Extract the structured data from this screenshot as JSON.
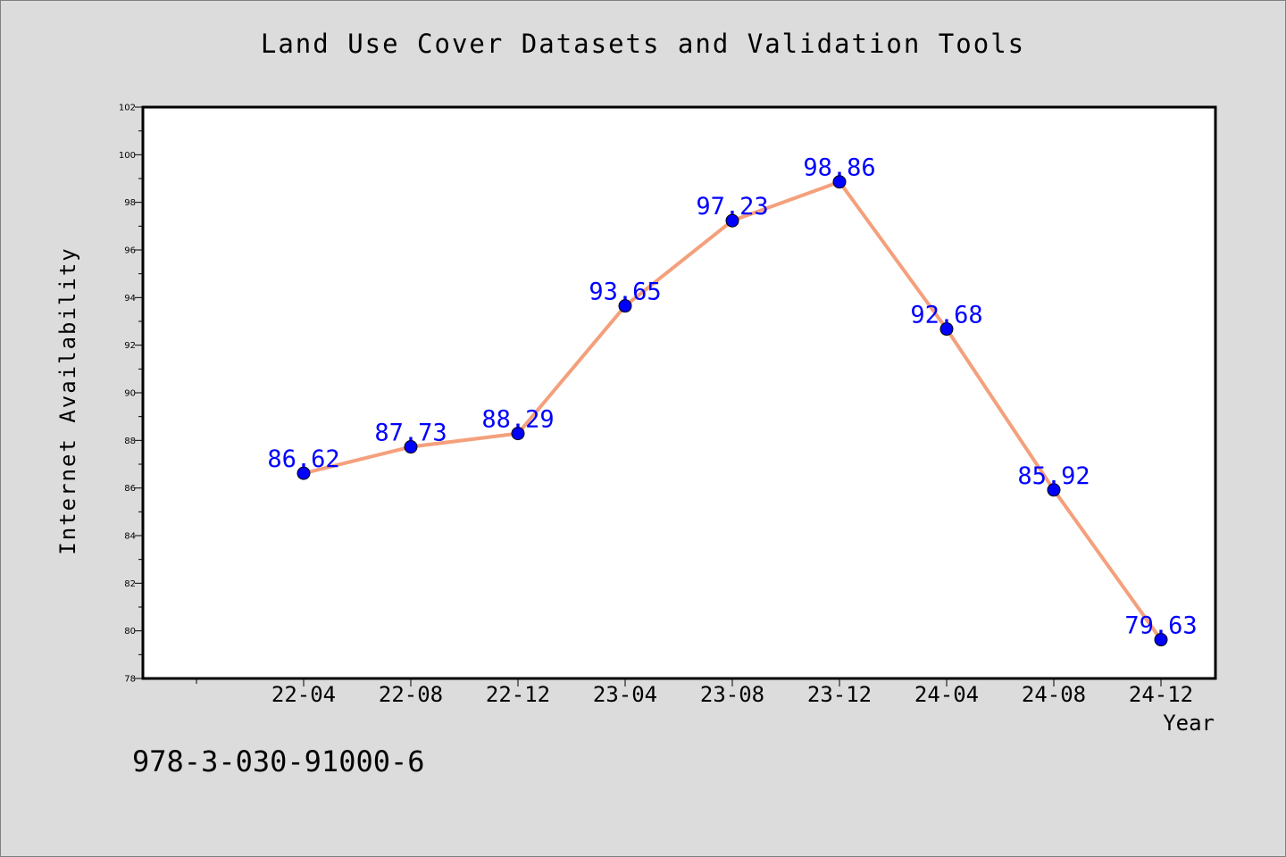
{
  "chart_data": {
    "type": "line",
    "title": "Land Use Cover Datasets and Validation Tools",
    "xlabel": "Year",
    "ylabel": "Internet Availability",
    "categories": [
      "22-04",
      "22-08",
      "22-12",
      "23-04",
      "23-08",
      "23-12",
      "24-04",
      "24-08",
      "24-12"
    ],
    "series": [
      {
        "values": [
          86.62,
          87.73,
          88.29,
          93.65,
          97.23,
          98.86,
          92.68,
          85.92,
          79.63
        ],
        "labels": [
          "86.62",
          "87.73",
          "88.29",
          "93.65",
          "97.23",
          "98.86",
          "92.68",
          "85.92",
          "79.63"
        ],
        "line_color": "#f4a07c",
        "marker_color": "#0000ff"
      }
    ],
    "ylim": [
      78,
      102
    ],
    "yticks": [
      78,
      80,
      82,
      84,
      86,
      88,
      90,
      92,
      94,
      96,
      98,
      100,
      102
    ],
    "ytick_labels": [
      "78",
      "80",
      "82",
      "84",
      "86",
      "88",
      "90",
      "92",
      "94",
      "96",
      "98",
      "100",
      "102"
    ],
    "grid": false,
    "label_color": "#0000ff"
  },
  "footer": {
    "isbn": "978-3-030-91000-6"
  }
}
